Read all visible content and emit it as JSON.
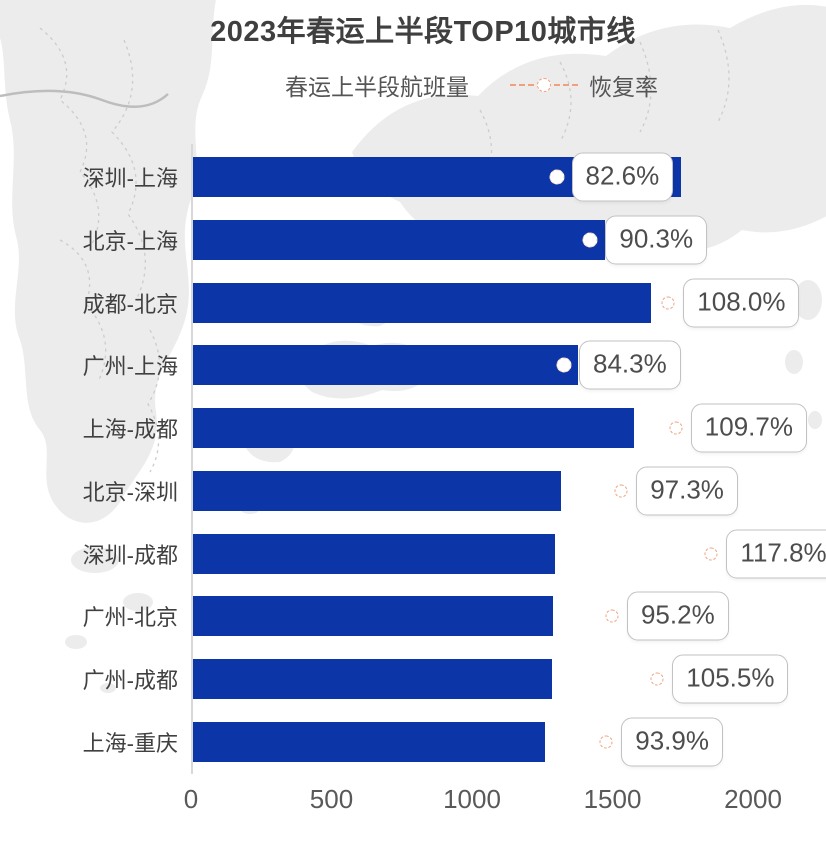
{
  "chart_data": {
    "type": "bar",
    "orientation": "horizontal",
    "title": "2023年春运上半段TOP10城市线",
    "categories": [
      "深圳-上海",
      "北京-上海",
      "成都-北京",
      "广州-上海",
      "上海-成都",
      "北京-深圳",
      "深圳-成都",
      "广州-北京",
      "广州-成都",
      "上海-重庆"
    ],
    "series": [
      {
        "name": "春运上半段航班量",
        "type": "bar",
        "color": "#0c35a7",
        "values": [
          1735,
          1465,
          1630,
          1370,
          1570,
          1310,
          1288,
          1281,
          1278,
          1252
        ]
      },
      {
        "name": "恢复率",
        "type": "scatter",
        "color": "#f0a17c",
        "unit": "%",
        "values": [
          82.6,
          90.3,
          108.0,
          84.3,
          109.7,
          97.3,
          117.8,
          95.2,
          105.5,
          93.9
        ],
        "labels": [
          "82.6%",
          "90.3%",
          "108.0%",
          "84.3%",
          "109.7%",
          "97.3%",
          "117.8%",
          "95.2%",
          "105.5%",
          "93.9%"
        ]
      }
    ],
    "x_axis": {
      "ticks": [
        "0",
        "500",
        "1000",
        "1500",
        "2000"
      ],
      "min": 0,
      "max": 2000
    },
    "secondary_axis": {
      "min": 0,
      "max": 127.7,
      "visible": false
    },
    "legend_position": "top",
    "grid": "off"
  },
  "colors": {
    "bar": "#0c35a7",
    "rate": "#f0a17c",
    "title_text": "#3f3f3f",
    "category_text": "#404040",
    "tick_text": "#595959",
    "callout_text": "#4d4d4d",
    "callout_border": "#c2c2c2",
    "axis_line": "#d8d8d8"
  }
}
